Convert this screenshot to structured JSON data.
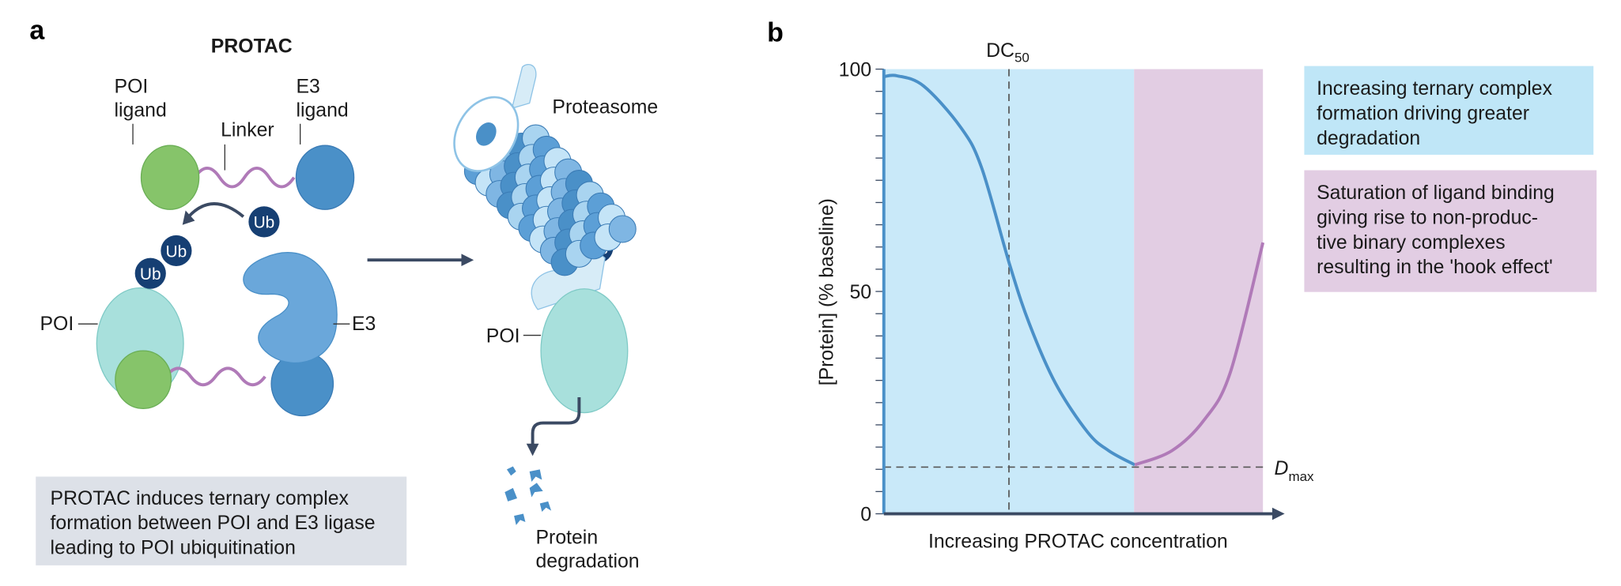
{
  "panel_a": {
    "letter": "a",
    "protac_title": "PROTAC",
    "poi_ligand": [
      "POI",
      "ligand"
    ],
    "linker": "Linker",
    "e3_ligand": [
      "E3",
      "ligand"
    ],
    "ub": "Ub",
    "poi": "POI",
    "e3": "E3",
    "proteasome": "Proteasome",
    "poi_right": "POI",
    "degradation": [
      "Protein",
      "degradation"
    ],
    "caption": [
      "PROTAC induces ternary complex",
      "formation between POI and E3 ligase",
      "leading to POI ubiquitination"
    ],
    "colors": {
      "poi": "#a8e0dc",
      "ligand_green": "#86c46a",
      "e3_blue": "#4a90c8",
      "ub": "#163f73",
      "linker": "#b07ab8",
      "caption_bg": "#dde1e8"
    }
  },
  "panel_b": {
    "letter": "b",
    "box_blue": [
      "Increasing ternary complex",
      "formation driving greater",
      "degradation"
    ],
    "box_pink": [
      "Saturation of ligand binding",
      "giving rise to non-produc-",
      "tive binary complexes",
      "resulting in the 'hook effect'"
    ]
  },
  "chart_data": {
    "type": "line",
    "xlabel": "Increasing PROTAC concentration",
    "ylabel": "[Protein] (% baseline)",
    "ylim": [
      0,
      100
    ],
    "xlim": [
      0,
      100
    ],
    "yticks": [
      0,
      50,
      100
    ],
    "minor_tick_step": 5,
    "dc50": {
      "main": "DC",
      "sub": "50",
      "x": 33
    },
    "dmax": {
      "main": "D",
      "sub": "max",
      "y": 10.5
    },
    "regions": [
      {
        "name": "ternary complex formation",
        "x": [
          0,
          66
        ],
        "color": "#c9e9f9"
      },
      {
        "name": "hook effect",
        "x": [
          66,
          100
        ],
        "color": "#e2cde3"
      }
    ],
    "series": [
      {
        "name": "degradation",
        "color": "#4a90c8",
        "x": [
          0,
          3.5,
          10.5,
          20.2,
          25.8,
          33.2,
          38.4,
          45.3,
          53.7,
          59.3,
          66.2
        ],
        "y": [
          98.3,
          98.5,
          96.2,
          87,
          77.8,
          56,
          42.7,
          29.3,
          18.4,
          14.2,
          11
        ]
      },
      {
        "name": "hook effect",
        "color": "#b07ab8",
        "x": [
          66.2,
          76,
          84.4,
          91.4,
          100
        ],
        "y": [
          11,
          14.2,
          21,
          31.8,
          61
        ]
      }
    ]
  }
}
